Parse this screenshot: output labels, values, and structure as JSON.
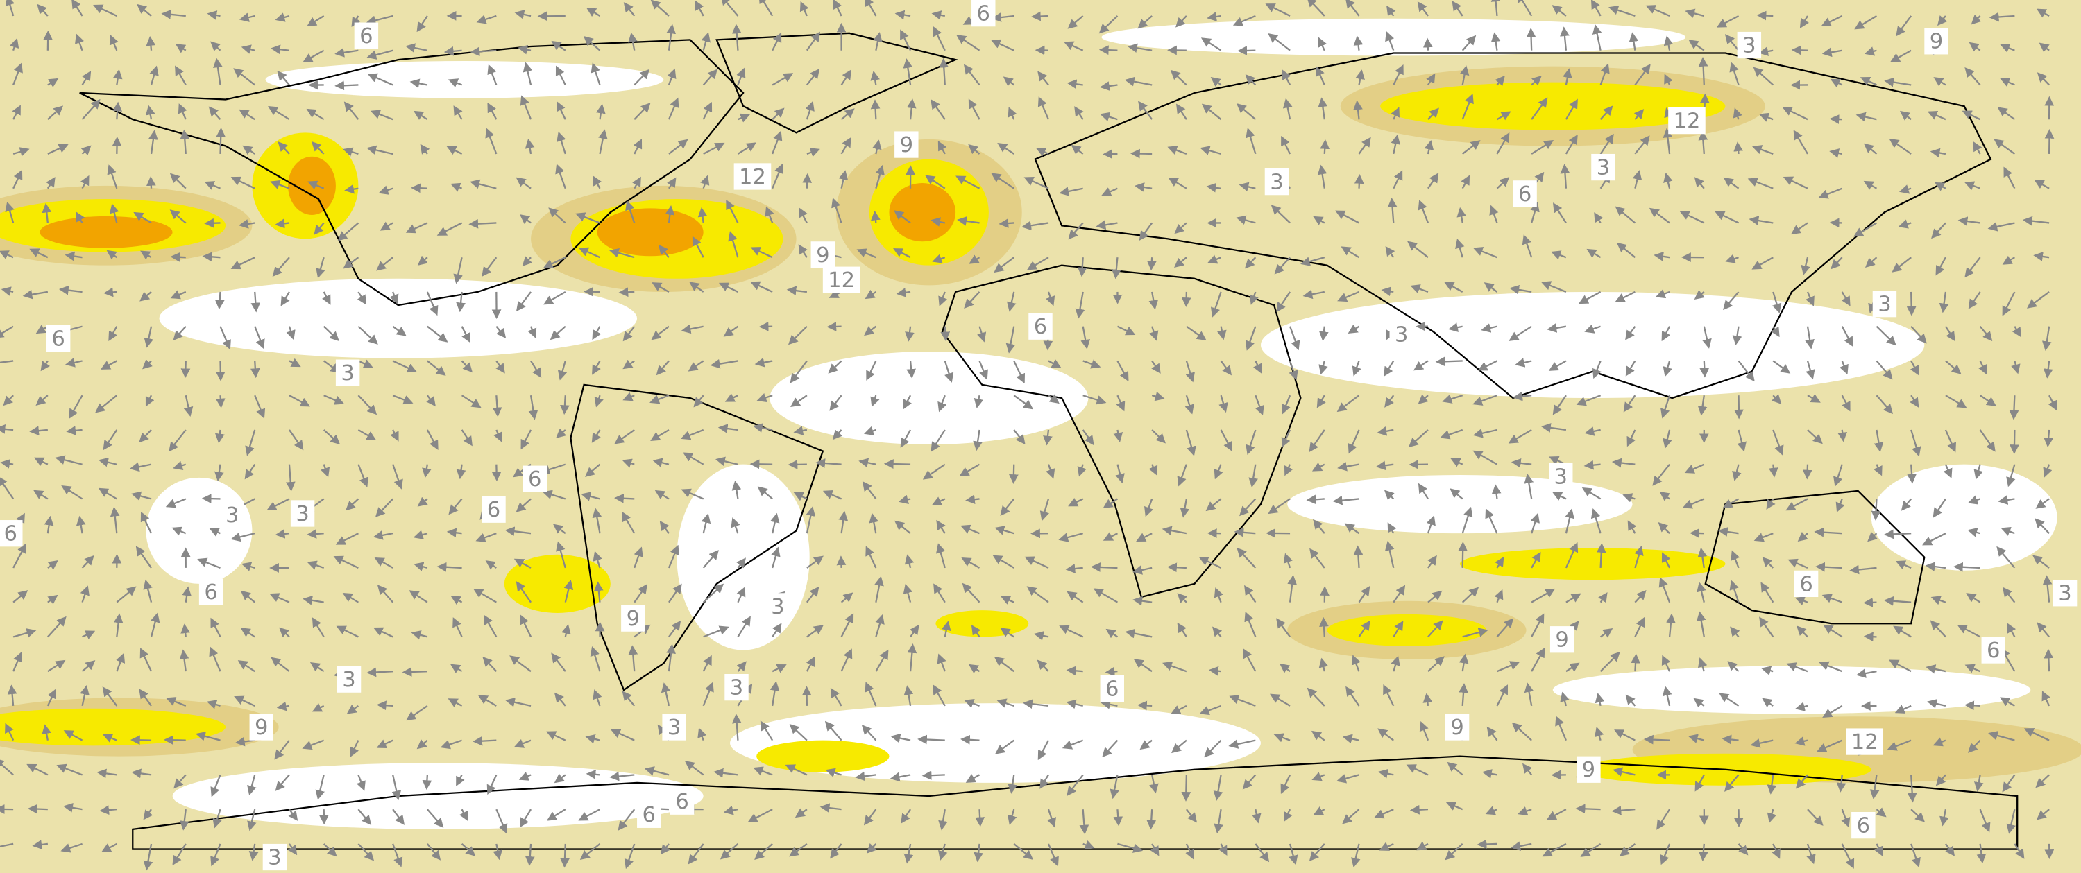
{
  "contour_labels": [
    "6",
    "6",
    "3",
    "9",
    "12",
    "3",
    "9",
    "12",
    "6",
    "3",
    "9",
    "12",
    "3",
    "6",
    "6",
    "3",
    "3",
    "6",
    "3",
    "6",
    "3",
    "3",
    "6",
    "6",
    "6",
    "3",
    "9",
    "3",
    "9",
    "6",
    "3",
    "3",
    "6",
    "9",
    "3",
    "9",
    "12",
    "9",
    "6",
    "6",
    "6",
    "3"
  ]
}
